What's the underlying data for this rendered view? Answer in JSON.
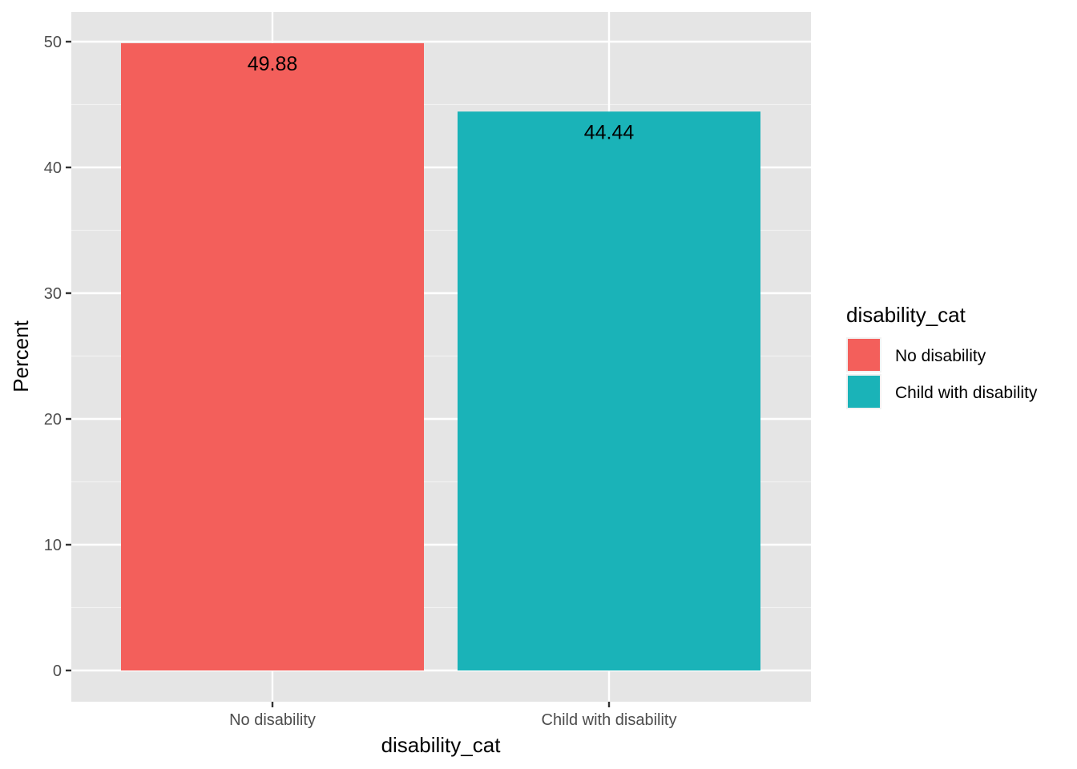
{
  "chart_data": {
    "type": "bar",
    "categories": [
      "No disability",
      "Child with disability"
    ],
    "values": [
      49.88,
      44.44
    ],
    "data_labels": [
      "49.88",
      "44.44"
    ],
    "colors": [
      "#F35F5B",
      "#1AB3B8"
    ],
    "xlabel": "disability_cat",
    "ylabel": "Percent",
    "ylim": [
      0,
      52.4
    ],
    "yticks": [
      0,
      10,
      20,
      30,
      40,
      50
    ],
    "ytick_labels": [
      "0",
      "10",
      "20",
      "30",
      "40",
      "50"
    ],
    "grid": true,
    "panel_background": "#E5E5E5",
    "legend": {
      "title": "disability_cat",
      "position": "right",
      "entries": [
        {
          "label": "No disability",
          "color": "#F35F5B"
        },
        {
          "label": "Child with disability",
          "color": "#1AB3B8"
        }
      ]
    }
  }
}
